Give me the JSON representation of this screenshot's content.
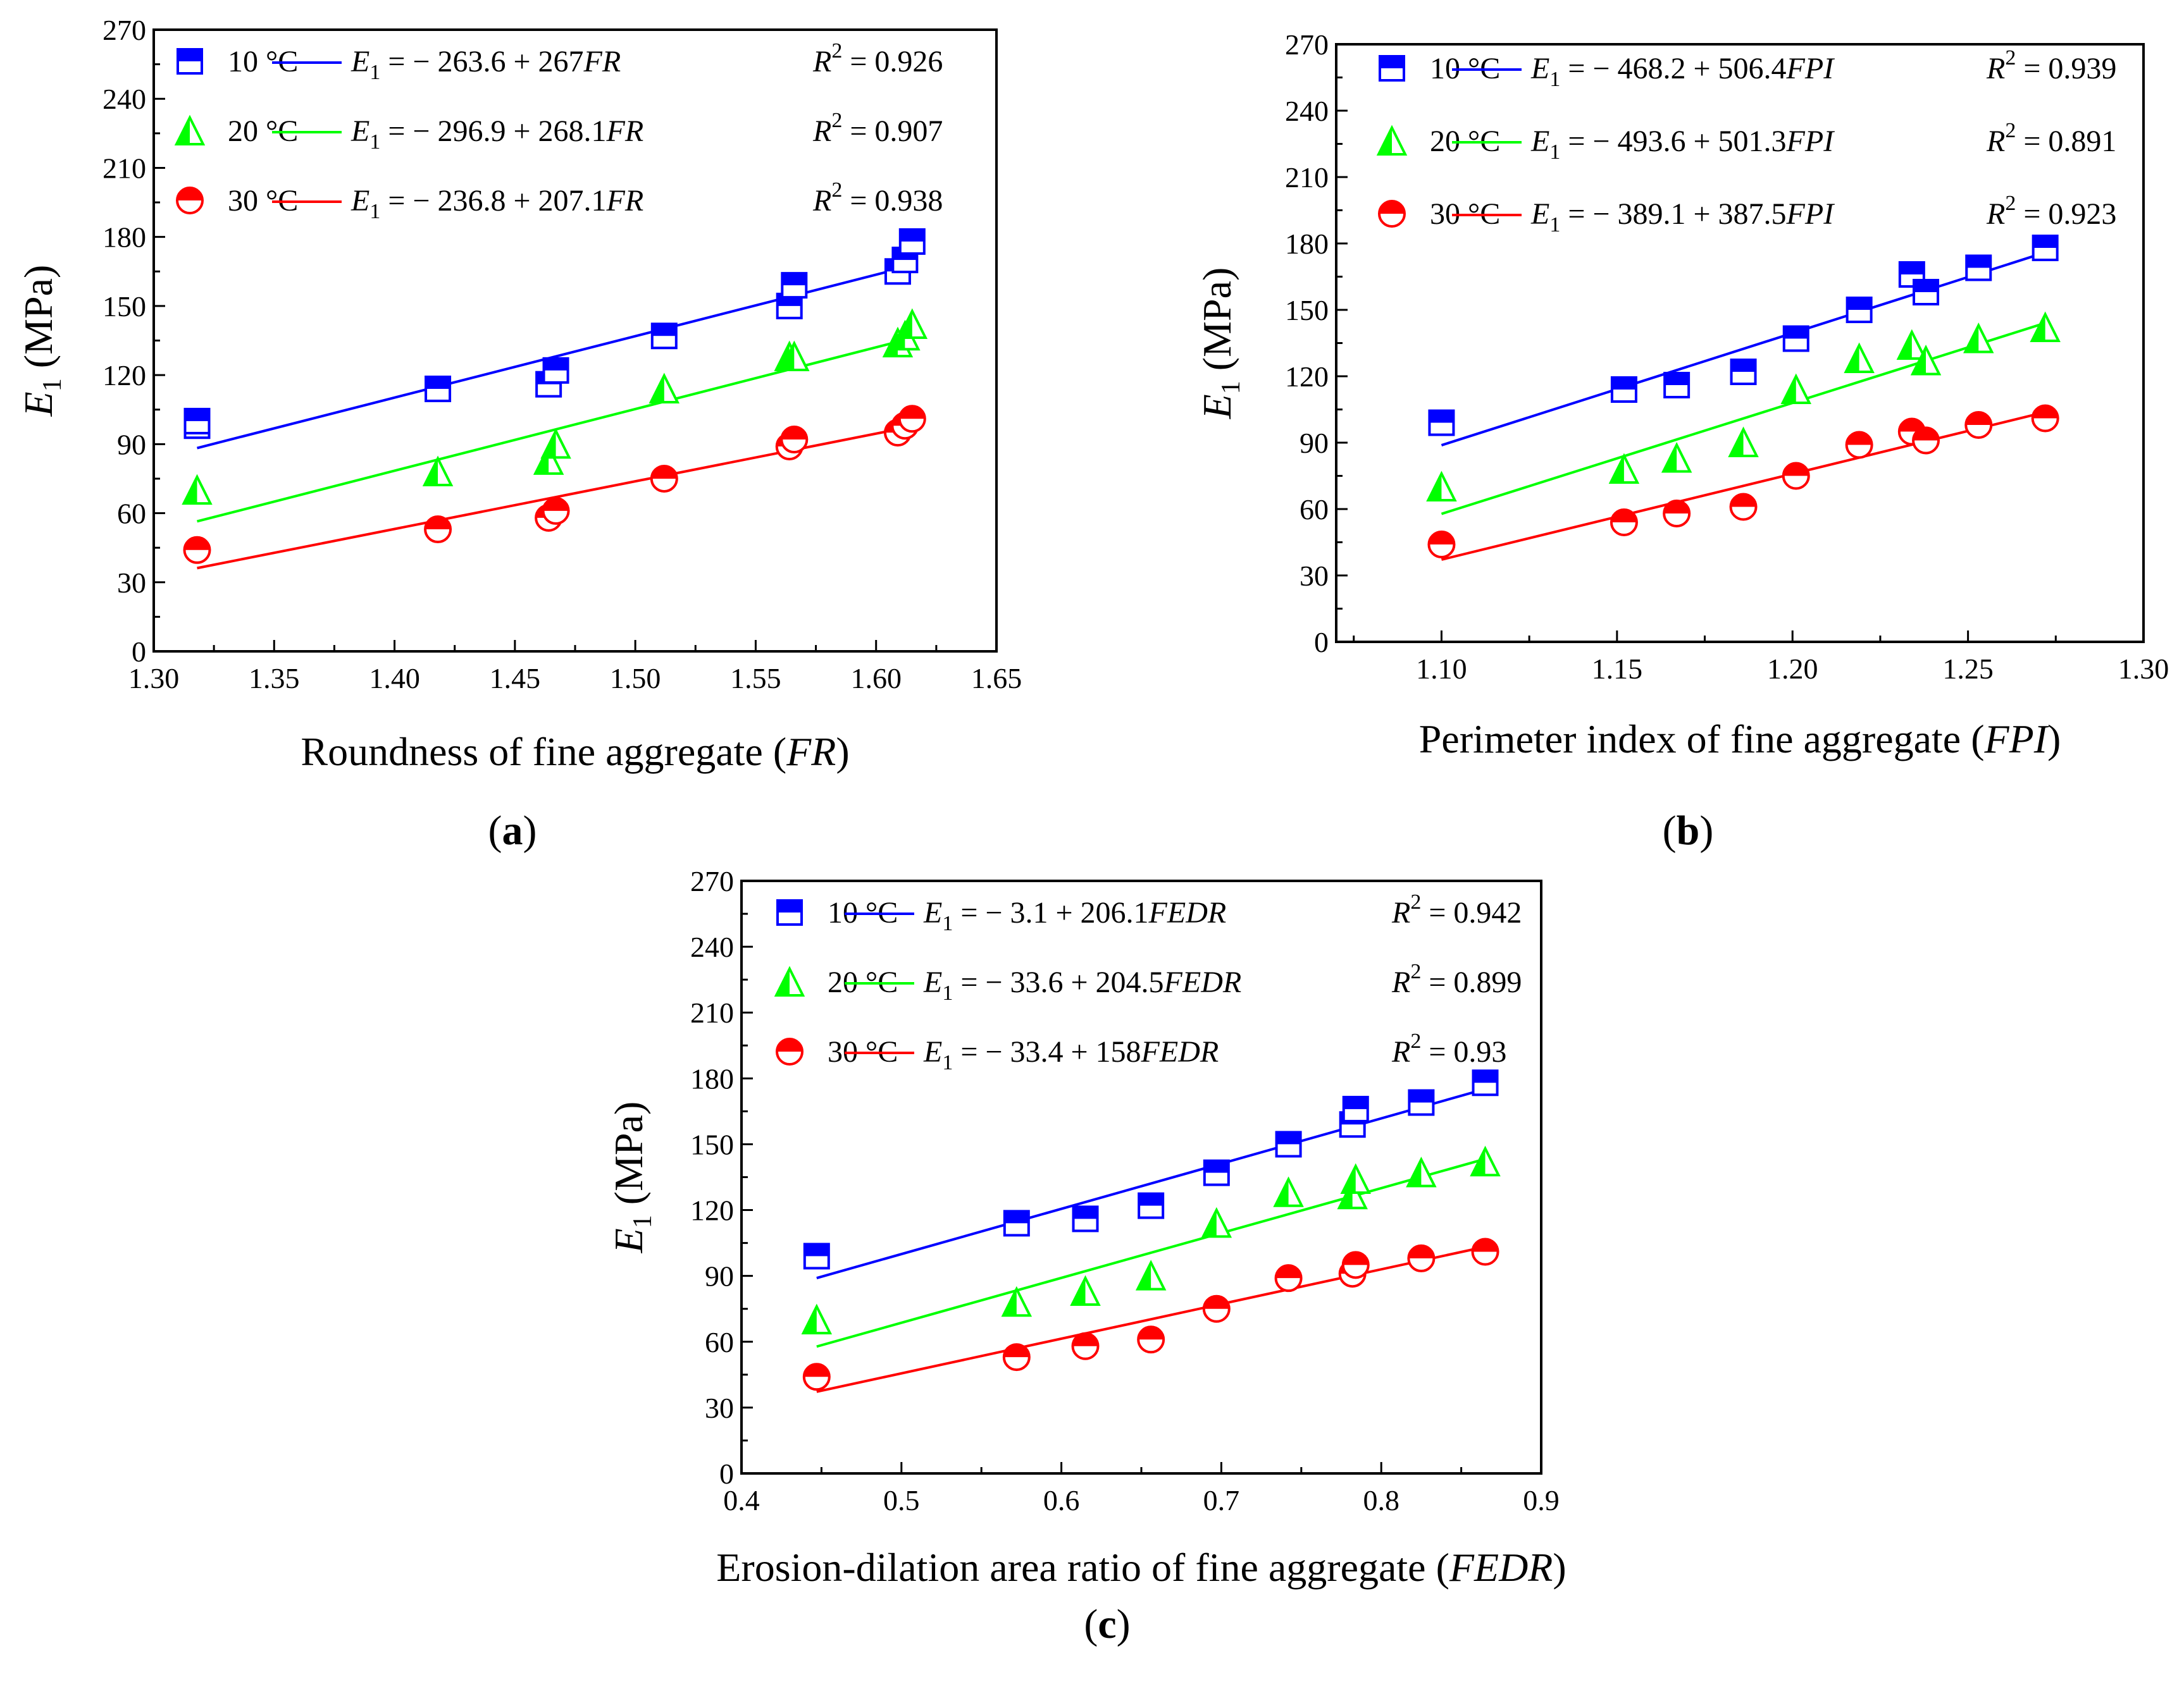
{
  "chart_data": [
    {
      "type": "scatter",
      "panel": "a",
      "xlabel": "Roundness of fine aggregate",
      "xvar": "FR",
      "ylabel_main": "E",
      "ylabel_sub": "1",
      "ylabel_unit": " (MPa)",
      "xlim": [
        1.3,
        1.65
      ],
      "ylim": [
        0,
        270
      ],
      "xticks": [
        "1.30",
        "1.35",
        "1.40",
        "1.45",
        "1.50",
        "1.55",
        "1.60",
        "1.65"
      ],
      "yticks": [
        "0",
        "30",
        "60",
        "90",
        "120",
        "150",
        "180",
        "210",
        "240",
        "270"
      ],
      "series": [
        {
          "name": "10 °C",
          "color": "#0000ff",
          "marker": "square",
          "fit": {
            "lhs": "E",
            "sub": "1",
            "rhs": " = − 263.6 + 267",
            "var": "FR",
            "r2": "= 0.926",
            "intercept": -263.6,
            "slope": 267,
            "xrange": [
              1.318,
              1.615
            ]
          },
          "x": [
            1.318,
            1.318,
            1.418,
            1.464,
            1.467,
            1.512,
            1.564,
            1.566,
            1.609,
            1.612,
            1.615
          ],
          "y": [
            98,
            100,
            114,
            116,
            122,
            137,
            150,
            159,
            165,
            170,
            178
          ]
        },
        {
          "name": "20 °C",
          "color": "#00ff00",
          "marker": "triangle",
          "fit": {
            "lhs": "E",
            "sub": "1",
            "rhs": " = − 296.9 + 268.1",
            "var": "FR",
            "r2": "= 0.907",
            "intercept": -296.9,
            "slope": 268.1,
            "xrange": [
              1.318,
              1.615
            ]
          },
          "x": [
            1.318,
            1.418,
            1.464,
            1.467,
            1.512,
            1.564,
            1.566,
            1.609,
            1.612,
            1.615
          ],
          "y": [
            70,
            78,
            83,
            90,
            114,
            128,
            128,
            134,
            137,
            142
          ]
        },
        {
          "name": "30 °C",
          "color": "#ff0000",
          "marker": "circle",
          "fit": {
            "lhs": "E",
            "sub": "1",
            "rhs": " = − 236.8 + 207.1",
            "var": "FR",
            "r2": "= 0.938",
            "intercept": -236.8,
            "slope": 207.1,
            "xrange": [
              1.318,
              1.615
            ]
          },
          "x": [
            1.318,
            1.418,
            1.464,
            1.467,
            1.512,
            1.564,
            1.566,
            1.609,
            1.612,
            1.615
          ],
          "y": [
            44,
            53,
            58,
            61,
            75,
            89,
            92,
            95,
            98,
            101
          ]
        }
      ]
    },
    {
      "type": "scatter",
      "panel": "b",
      "xlabel": "Perimeter index of fine aggregate",
      "xvar": "FPI",
      "ylabel_main": "E",
      "ylabel_sub": "1",
      "ylabel_unit": " (MPa)",
      "xlim": [
        1.07,
        1.3
      ],
      "ylim": [
        0,
        270
      ],
      "xticks": [
        "1.10",
        "1.15",
        "1.20",
        "1.25",
        "1.30"
      ],
      "xtick_values": [
        1.1,
        1.15,
        1.2,
        1.25,
        1.3
      ],
      "yticks": [
        "0",
        "30",
        "60",
        "90",
        "120",
        "150",
        "180",
        "210",
        "240",
        "270"
      ],
      "series": [
        {
          "name": "10 °C",
          "color": "#0000ff",
          "marker": "square",
          "fit": {
            "lhs": "E",
            "sub": "1",
            "rhs": " = − 468.2 + 506.4",
            "var": "FPI",
            "r2": "= 0.939",
            "intercept": -468.2,
            "slope": 506.4,
            "xrange": [
              1.1,
              1.272
            ]
          },
          "x": [
            1.1,
            1.152,
            1.167,
            1.186,
            1.201,
            1.219,
            1.234,
            1.238,
            1.253,
            1.272
          ],
          "y": [
            99,
            114,
            116,
            122,
            137,
            150,
            166,
            158,
            169,
            178
          ]
        },
        {
          "name": "20 °C",
          "color": "#00ff00",
          "marker": "triangle",
          "fit": {
            "lhs": "E",
            "sub": "1",
            "rhs": " = − 493.6 + 501.3",
            "var": "FPI",
            "r2": "= 0.891",
            "intercept": -493.6,
            "slope": 501.3,
            "xrange": [
              1.1,
              1.272
            ]
          },
          "x": [
            1.1,
            1.152,
            1.167,
            1.186,
            1.201,
            1.219,
            1.234,
            1.238,
            1.253,
            1.272
          ],
          "y": [
            70,
            78,
            83,
            90,
            114,
            128,
            134,
            127,
            137,
            142
          ]
        },
        {
          "name": "30 °C",
          "color": "#ff0000",
          "marker": "circle",
          "fit": {
            "lhs": "E",
            "sub": "1",
            "rhs": " = − 389.1 + 387.5",
            "var": "FPI",
            "r2": "= 0.923",
            "intercept": -389.1,
            "slope": 387.5,
            "xrange": [
              1.1,
              1.272
            ]
          },
          "x": [
            1.1,
            1.152,
            1.167,
            1.186,
            1.201,
            1.219,
            1.234,
            1.238,
            1.253,
            1.272
          ],
          "y": [
            44,
            54,
            58,
            61,
            75,
            89,
            95,
            91,
            98,
            101
          ]
        }
      ]
    },
    {
      "type": "scatter",
      "panel": "c",
      "xlabel": "Erosion-dilation area ratio of fine aggregate",
      "xvar": "FEDR",
      "ylabel_main": "E",
      "ylabel_sub": "1",
      "ylabel_unit": " (MPa)",
      "xlim": [
        0.4,
        0.9
      ],
      "ylim": [
        0,
        270
      ],
      "xticks": [
        "0.4",
        "0.5",
        "0.6",
        "0.7",
        "0.8",
        "0.9"
      ],
      "yticks": [
        "0",
        "30",
        "60",
        "90",
        "120",
        "150",
        "180",
        "210",
        "240",
        "270"
      ],
      "series": [
        {
          "name": "10 °C",
          "color": "#0000ff",
          "marker": "square",
          "fit": {
            "lhs": "E",
            "sub": "1",
            "rhs": " = − 3.1 + 206.1",
            "var": "FEDR",
            "r2": "= 0.942",
            "intercept": -3.1,
            "slope": 206.1,
            "xrange": [
              0.447,
              0.865
            ]
          },
          "x": [
            0.447,
            0.572,
            0.615,
            0.656,
            0.697,
            0.742,
            0.782,
            0.784,
            0.825,
            0.865
          ],
          "y": [
            99,
            114,
            116,
            122,
            137,
            150,
            159,
            166,
            169,
            178
          ]
        },
        {
          "name": "20 °C",
          "color": "#00ff00",
          "marker": "triangle",
          "fit": {
            "lhs": "E",
            "sub": "1",
            "rhs": " = − 33.6 + 204.5",
            "var": "FEDR",
            "r2": "= 0.899",
            "intercept": -33.6,
            "slope": 204.5,
            "xrange": [
              0.447,
              0.865
            ]
          },
          "x": [
            0.447,
            0.572,
            0.615,
            0.656,
            0.697,
            0.742,
            0.782,
            0.784,
            0.825,
            0.865
          ],
          "y": [
            70,
            78,
            83,
            90,
            114,
            128,
            127,
            134,
            137,
            142
          ]
        },
        {
          "name": "30 °C",
          "color": "#ff0000",
          "marker": "circle",
          "fit": {
            "lhs": "E",
            "sub": "1",
            "rhs": " = − 33.4 + 158",
            "var": "FEDR",
            "r2": "= 0.93",
            "intercept": -33.4,
            "slope": 158,
            "xrange": [
              0.447,
              0.865
            ]
          },
          "x": [
            0.447,
            0.572,
            0.615,
            0.656,
            0.697,
            0.742,
            0.782,
            0.784,
            0.825,
            0.865
          ],
          "y": [
            44,
            53,
            58,
            61,
            75,
            89,
            91,
            95,
            98,
            101
          ]
        }
      ]
    }
  ],
  "r2_label": {
    "main": "R",
    "sup": "2"
  }
}
